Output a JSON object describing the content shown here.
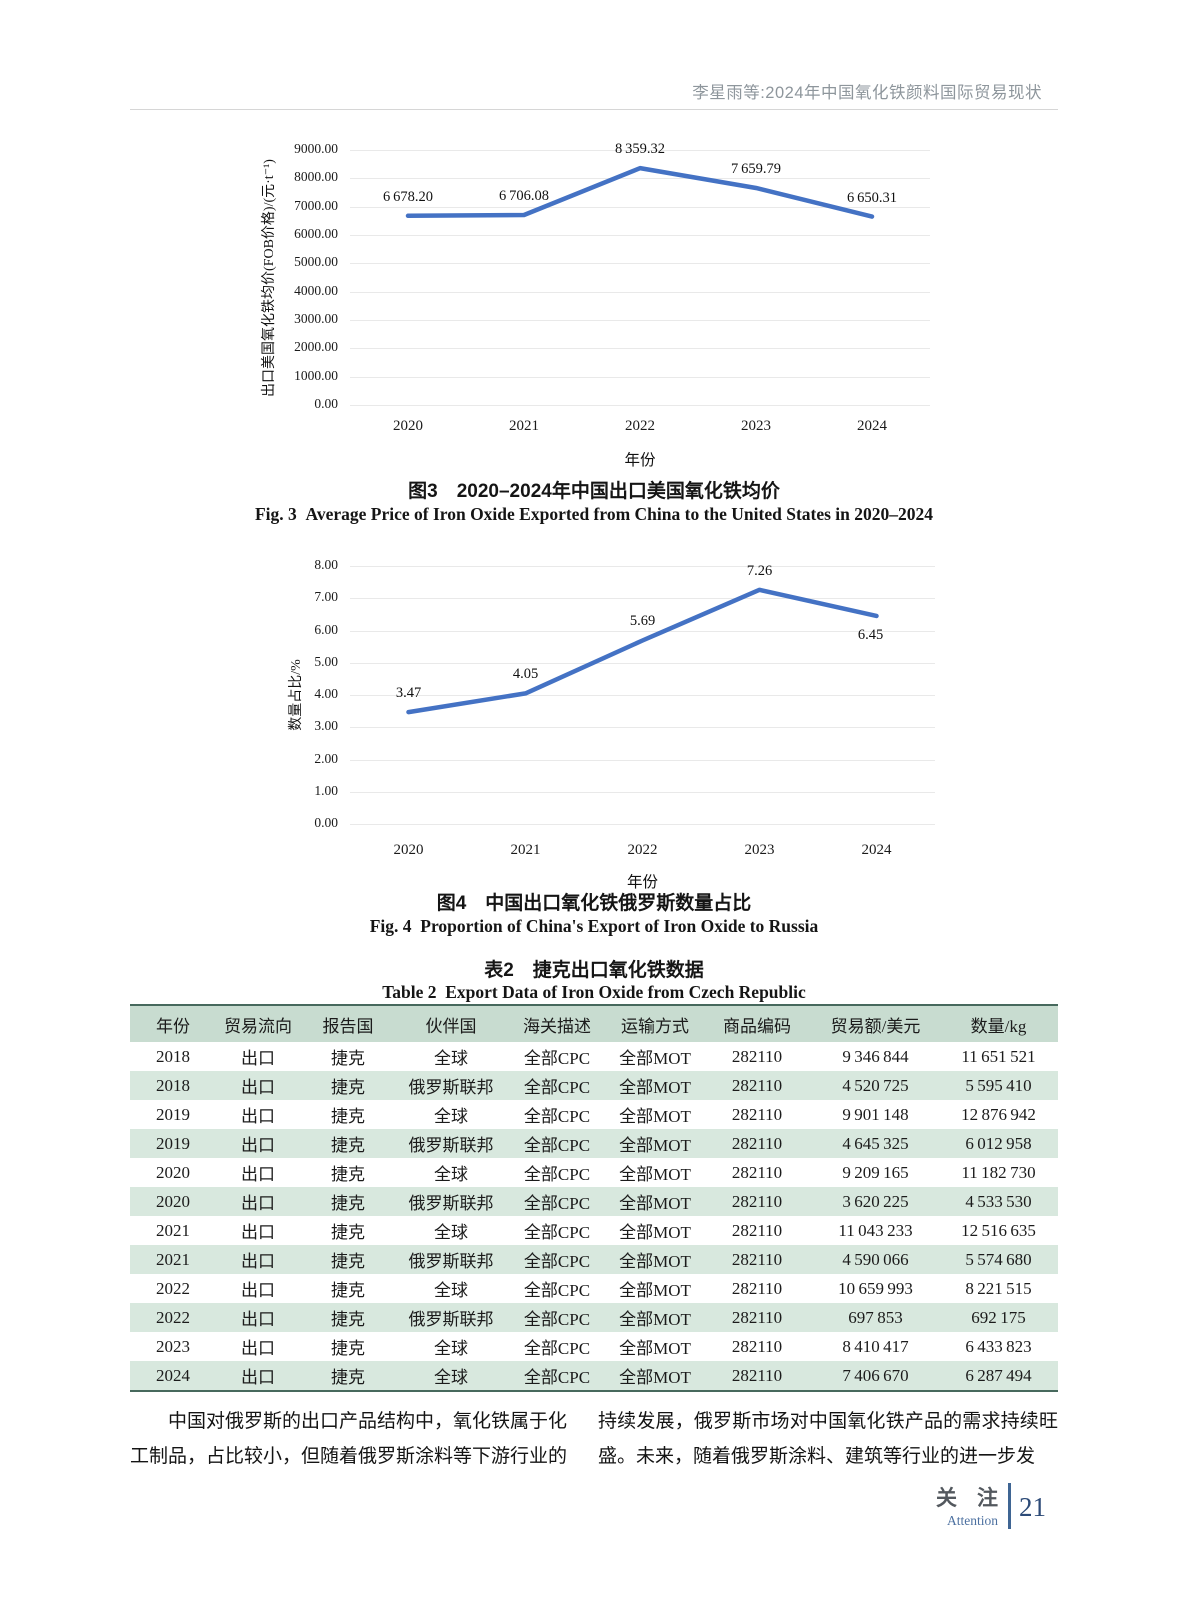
{
  "page": {
    "header_title": "李星雨等:2024年中国氧化铁颜料国际贸易现状"
  },
  "chart_data": [
    {
      "type": "line",
      "x": [
        "2020",
        "2021",
        "2022",
        "2023",
        "2024"
      ],
      "series": [
        {
          "name": "出口美国氧化铁均价",
          "values": [
            6678.2,
            6706.08,
            8359.32,
            7659.79,
            6650.31
          ],
          "labels": [
            "6 678.20",
            "6 706.08",
            "8 359.32",
            "7 659.79",
            "6 650.31"
          ]
        }
      ],
      "xlabel": "年份",
      "ylabel": "出口美国氧化铁均价(FOB价格)/(元·t⁻¹)",
      "ylim": [
        0,
        9000
      ],
      "ytick_step": 1000,
      "grid": true,
      "legend_position": "none",
      "line_color": "#4472C4"
    },
    {
      "type": "line",
      "x": [
        "2020",
        "2021",
        "2022",
        "2023",
        "2024"
      ],
      "series": [
        {
          "name": "数量占比",
          "values": [
            3.47,
            4.05,
            5.69,
            7.26,
            6.45
          ],
          "labels": [
            "3.47",
            "4.05",
            "5.69",
            "7.26",
            "6.45"
          ]
        }
      ],
      "xlabel": "年份",
      "ylabel": "数量占比/%",
      "ylim": [
        0,
        8
      ],
      "ytick_step": 1,
      "grid": true,
      "legend_position": "none",
      "line_color": "#4472C4"
    }
  ],
  "figure3": {
    "caption_zh": "图3　2020–2024年中国出口美国氧化铁均价",
    "caption_en": "Fig. 3  Average Price of Iron Oxide Exported from China to the United States in 2020–2024"
  },
  "figure4": {
    "caption_zh": "图4　中国出口氧化铁俄罗斯数量占比",
    "caption_en": "Fig. 4  Proportion of China's Export of Iron Oxide to Russia"
  },
  "table2": {
    "caption_zh": "表2　捷克出口氧化铁数据",
    "caption_en": "Table 2  Export Data of Iron Oxide from Czech Republic",
    "columns": [
      "年份",
      "贸易流向",
      "报告国",
      "伙伴国",
      "海关描述",
      "运输方式",
      "商品编码",
      "贸易额/美元",
      "数量/kg"
    ],
    "rows": [
      [
        "2018",
        "出口",
        "捷克",
        "全球",
        "全部CPC",
        "全部MOT",
        "282110",
        "9 346 844",
        "11 651 521"
      ],
      [
        "2018",
        "出口",
        "捷克",
        "俄罗斯联邦",
        "全部CPC",
        "全部MOT",
        "282110",
        "4 520 725",
        "5 595 410"
      ],
      [
        "2019",
        "出口",
        "捷克",
        "全球",
        "全部CPC",
        "全部MOT",
        "282110",
        "9 901 148",
        "12 876 942"
      ],
      [
        "2019",
        "出口",
        "捷克",
        "俄罗斯联邦",
        "全部CPC",
        "全部MOT",
        "282110",
        "4 645 325",
        "6 012 958"
      ],
      [
        "2020",
        "出口",
        "捷克",
        "全球",
        "全部CPC",
        "全部MOT",
        "282110",
        "9 209 165",
        "11 182 730"
      ],
      [
        "2020",
        "出口",
        "捷克",
        "俄罗斯联邦",
        "全部CPC",
        "全部MOT",
        "282110",
        "3 620 225",
        "4 533 530"
      ],
      [
        "2021",
        "出口",
        "捷克",
        "全球",
        "全部CPC",
        "全部MOT",
        "282110",
        "11 043 233",
        "12 516 635"
      ],
      [
        "2021",
        "出口",
        "捷克",
        "俄罗斯联邦",
        "全部CPC",
        "全部MOT",
        "282110",
        "4 590 066",
        "5 574 680"
      ],
      [
        "2022",
        "出口",
        "捷克",
        "全球",
        "全部CPC",
        "全部MOT",
        "282110",
        "10 659 993",
        "8 221 515"
      ],
      [
        "2022",
        "出口",
        "捷克",
        "俄罗斯联邦",
        "全部CPC",
        "全部MOT",
        "282110",
        "697 853",
        "692 175"
      ],
      [
        "2023",
        "出口",
        "捷克",
        "全球",
        "全部CPC",
        "全部MOT",
        "282110",
        "8 410 417",
        "6 433 823"
      ],
      [
        "2024",
        "出口",
        "捷克",
        "全球",
        "全部CPC",
        "全部MOT",
        "282110",
        "7 406 670",
        "6 287 494"
      ]
    ],
    "colors": {
      "header_bg": "#c8dcd0",
      "stripe_bg": "#d8e8de",
      "border": "#47695d"
    }
  },
  "body": {
    "left_column": "中国对俄罗斯的出口产品结构中，氧化铁属于化工制品，占比较小，但随着俄罗斯涂料等下游行业的",
    "right_column": "持续发展，俄罗斯市场对中国氧化铁产品的需求持续旺盛。未来，随着俄罗斯涂料、建筑等行业的进一步发"
  },
  "footer": {
    "label_zh": "关注",
    "label_en": "Attention",
    "page_number": "21",
    "accent_color": "#3f6593"
  }
}
